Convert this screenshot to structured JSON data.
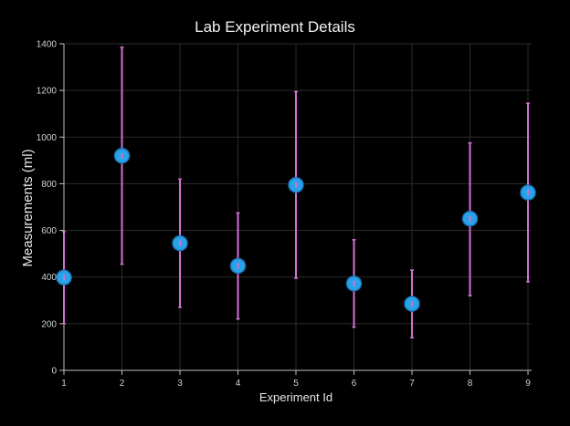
{
  "chart_data": {
    "type": "scatter",
    "title": "Lab Experiment Details",
    "xlabel": "Experiment Id",
    "ylabel": "Measurements (ml)",
    "xlim": [
      1,
      9
    ],
    "ylim": [
      0,
      1400
    ],
    "x_ticks": [
      1,
      2,
      3,
      4,
      5,
      6,
      7,
      8,
      9
    ],
    "y_ticks": [
      0,
      200,
      400,
      600,
      800,
      1000,
      1200,
      1400
    ],
    "grid": true,
    "marker_color": "#29a3e8",
    "marker_outline": "#1e73b8",
    "error_bar_color": "#d46fd4",
    "points": [
      {
        "x": 1,
        "y": 398,
        "low": 200,
        "high": 595
      },
      {
        "x": 2,
        "y": 920,
        "low": 455,
        "high": 1385
      },
      {
        "x": 3,
        "y": 545,
        "low": 270,
        "high": 820
      },
      {
        "x": 4,
        "y": 448,
        "low": 220,
        "high": 675
      },
      {
        "x": 5,
        "y": 795,
        "low": 395,
        "high": 1195
      },
      {
        "x": 6,
        "y": 372,
        "low": 185,
        "high": 560
      },
      {
        "x": 7,
        "y": 285,
        "low": 140,
        "high": 430
      },
      {
        "x": 8,
        "y": 650,
        "low": 320,
        "high": 975
      },
      {
        "x": 9,
        "y": 762,
        "low": 380,
        "high": 1145
      }
    ]
  }
}
